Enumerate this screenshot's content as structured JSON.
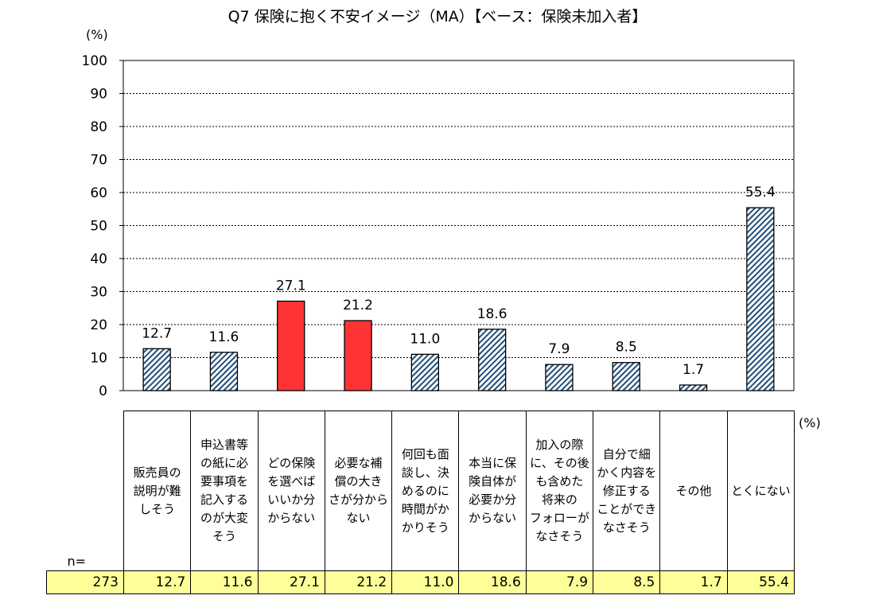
{
  "chart_data": {
    "type": "bar",
    "title": "Q7 保険に抱く不安イメージ（MA）【ベース：保険未加入者】",
    "y_unit": "(%)",
    "table_unit": "(%)",
    "ylim": [
      0,
      100
    ],
    "y_ticks": [
      "0",
      "10",
      "20",
      "30",
      "40",
      "50",
      "60",
      "70",
      "80",
      "90",
      "100"
    ],
    "grid": true,
    "categories": [
      "販売員の\n説明が難\nしそう",
      "申込書等\nの紙に必\n要事項を\n記入する\nのが大変\nそう",
      "どの保険\nを選べば\nいいか分\nからない",
      "必要な補\n償の大き\nさが分から\nない",
      "何回も面\n談し、決\nめるのに\n時間がか\nかりそう",
      "本当に保\n険自体が\n必要か分\nからない",
      "加入の際\nに、その後\nも含めた\n将来の\nフォローが\nなさそう",
      "自分で細\nかく内容を\n修正する\nことができ\nなさそう",
      "その他",
      "とくにない"
    ],
    "values": [
      12.7,
      11.6,
      27.1,
      21.2,
      11.0,
      18.6,
      7.9,
      8.5,
      1.7,
      55.4
    ],
    "value_labels": [
      "12.7",
      "11.6",
      "27.1",
      "21.2",
      "11.0",
      "18.6",
      "7.9",
      "8.5",
      "1.7",
      "55.4"
    ],
    "highlight": [
      false,
      false,
      true,
      true,
      false,
      false,
      false,
      false,
      false,
      false
    ],
    "n_label": "n=",
    "n_value": "273",
    "colors": {
      "normal_stripe": "#1f4e79",
      "highlight": "#ff3333",
      "table_bg": "#ffff99"
    }
  }
}
